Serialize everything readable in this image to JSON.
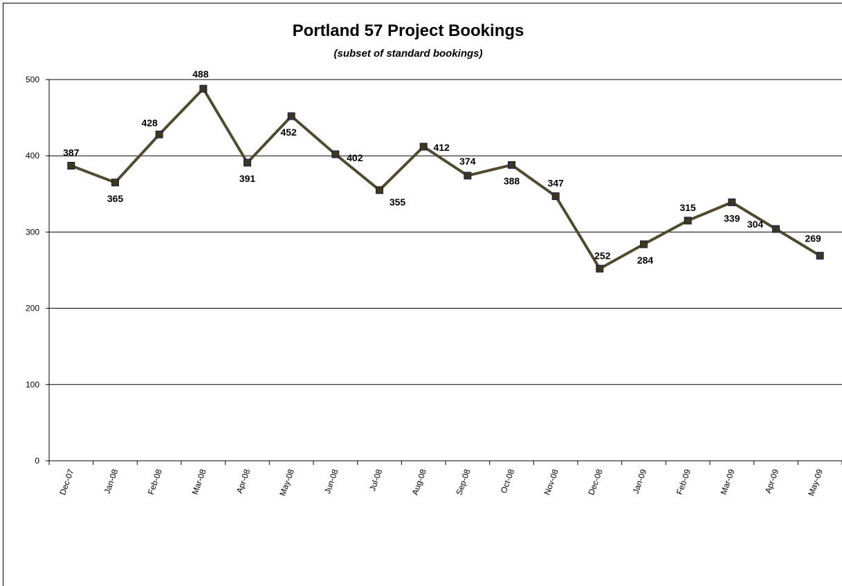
{
  "chart_data": {
    "type": "line",
    "title": "Portland 57 Project Bookings",
    "subtitle": "(subset of standard bookings)",
    "categories": [
      "Dec-07",
      "Jan-08",
      "Feb-08",
      "Mar-08",
      "Apr-08",
      "May-08",
      "Jun-08",
      "Jul-08",
      "Aug-08",
      "Sep-08",
      "Oct-08",
      "Nov-08",
      "Dec-08",
      "Jan-09",
      "Feb-09",
      "Mar-09",
      "Apr-09",
      "May-09"
    ],
    "series": [
      {
        "name": "Bookings",
        "color": "#4f4a30",
        "values": [
          387,
          365,
          428,
          488,
          391,
          452,
          402,
          355,
          412,
          374,
          388,
          347,
          252,
          284,
          315,
          339,
          304,
          269
        ]
      }
    ],
    "ylim": [
      0,
      500
    ],
    "yticks": [
      0,
      100,
      200,
      300,
      400,
      500
    ],
    "grid": true
  }
}
